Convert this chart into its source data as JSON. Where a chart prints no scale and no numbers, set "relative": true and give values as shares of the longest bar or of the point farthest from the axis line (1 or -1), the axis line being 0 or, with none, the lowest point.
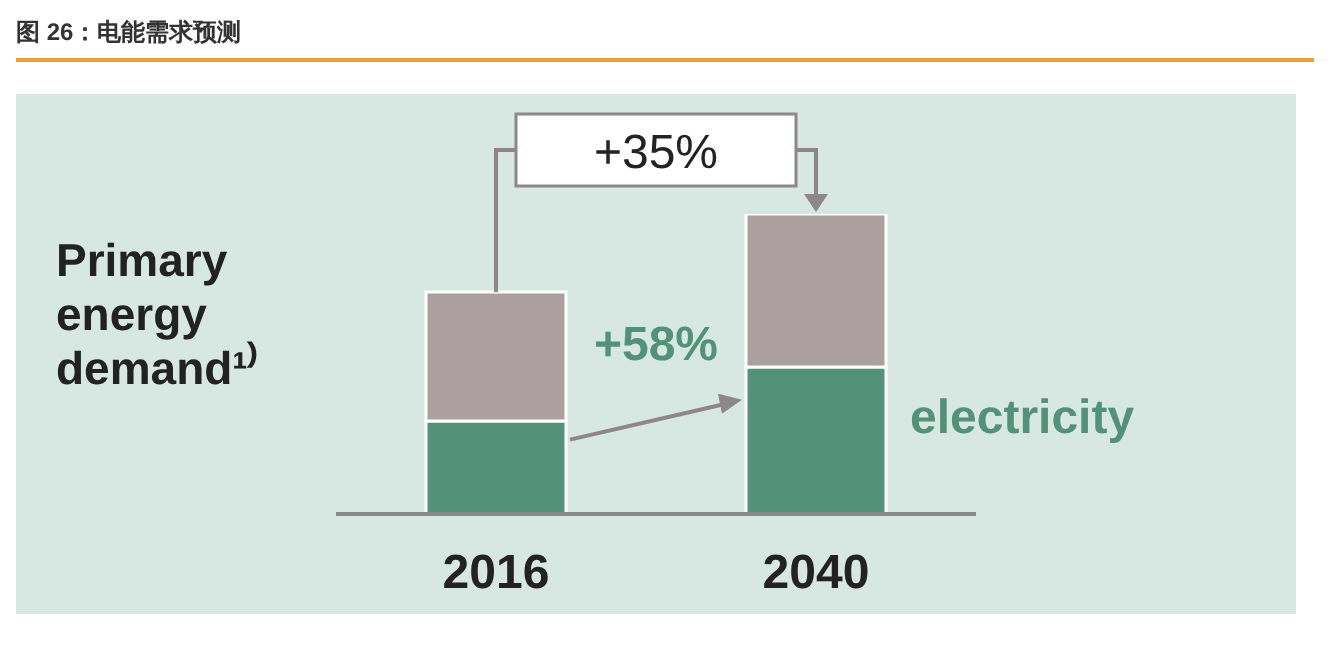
{
  "chart_data": {
    "type": "bar",
    "title": "图 26：电能需求预测",
    "categories": [
      "2016",
      "2040"
    ],
    "stacked": true,
    "relative": true,
    "series": [
      {
        "name": "electricity",
        "color": "#54917b",
        "values": [
          0.31,
          0.49
        ]
      },
      {
        "color": "#aba09f",
        "values": [
          0.43,
          0.51
        ]
      }
    ],
    "annotations": [
      "+35%",
      "+58%",
      "Primary energy demand¹⁾"
    ],
    "grid": false,
    "legend": false
  }
}
